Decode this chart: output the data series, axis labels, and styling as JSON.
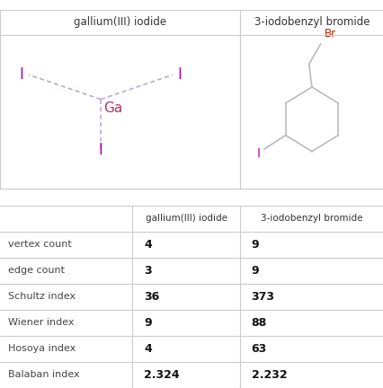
{
  "col1_header": "gallium(III) iodide",
  "col2_header": "3-iodobenzyl bromide",
  "row_labels": [
    "vertex count",
    "edge count",
    "Schultz index",
    "Wiener index",
    "Hosoya index",
    "Balaban index"
  ],
  "col1_values": [
    "4",
    "3",
    "36",
    "9",
    "4",
    "2.324"
  ],
  "col2_values": [
    "9",
    "9",
    "373",
    "88",
    "63",
    "2.232"
  ],
  "ga_color": "#b03060",
  "iodine_color": "#aa00aa",
  "br_color": "#aa2200",
  "bond_color": "#bbaacc",
  "right_bond_color": "#bbbbbb",
  "line_color": "#cccccc",
  "header_text_color": "#333333",
  "value_text_color": "#111111",
  "label_text_color": "#444444"
}
